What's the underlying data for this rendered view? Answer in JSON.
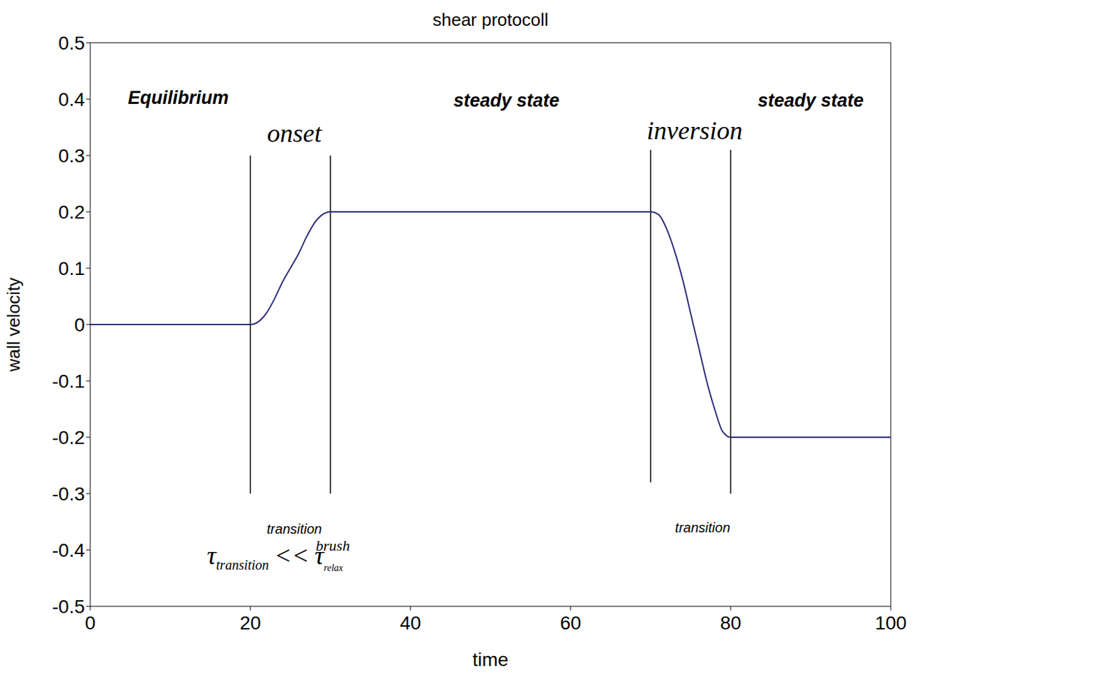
{
  "chart_data": {
    "type": "line",
    "title": "shear protocoll",
    "x_label": "time",
    "y_label": "wall velocity",
    "x": [
      0,
      20,
      21,
      22,
      23,
      24,
      25,
      26,
      27,
      28,
      29,
      30,
      70,
      71,
      72,
      73,
      74,
      75,
      76,
      77,
      78,
      79,
      80,
      100
    ],
    "values": [
      0,
      0,
      0.005,
      0.02,
      0.045,
      0.075,
      0.1,
      0.125,
      0.155,
      0.18,
      0.195,
      0.2,
      0.2,
      0.195,
      0.17,
      0.13,
      0.08,
      0.02,
      -0.04,
      -0.1,
      -0.15,
      -0.19,
      -0.2,
      -0.2
    ],
    "color": "#2b2b7a",
    "xlim": [
      0,
      100
    ],
    "xticks": [
      0,
      20,
      40,
      60,
      80,
      100
    ],
    "ylim": [
      -0.5,
      0.5
    ],
    "yticks": [
      -0.5,
      -0.4,
      -0.3,
      -0.2,
      -0.1,
      0,
      0.1,
      0.2,
      0.3,
      0.4,
      0.5
    ],
    "grid": false,
    "vertical_lines": [
      {
        "x": 20,
        "ymin": -0.3,
        "ymax": 0.3
      },
      {
        "x": 30,
        "ymin": -0.3,
        "ymax": 0.3
      },
      {
        "x": 70,
        "ymin": -0.28,
        "ymax": 0.31
      },
      {
        "x": 80,
        "ymin": -0.3,
        "ymax": 0.31
      }
    ],
    "annotations": [
      {
        "text": "Equilibrium",
        "x": 11,
        "y": 0.4,
        "style": "label"
      },
      {
        "text": "steady state",
        "x": 52,
        "y": 0.395,
        "style": "label"
      },
      {
        "text": "steady state",
        "x": 90,
        "y": 0.395,
        "style": "label"
      },
      {
        "text": "onset",
        "x": 25.5,
        "y": 0.335,
        "style": "big"
      },
      {
        "text": "inversion",
        "x": 75.5,
        "y": 0.34,
        "style": "big"
      },
      {
        "text": "transition",
        "x": 25.5,
        "y": -0.365,
        "style": "small"
      },
      {
        "text": "transition",
        "x": 76.5,
        "y": -0.362,
        "style": "small"
      }
    ],
    "formula": {
      "x": 23.5,
      "y": -0.425,
      "left": "τ",
      "left_sub": "transition",
      "op": "<<",
      "right": "τ",
      "right_sub": "relax",
      "right_sup": "brush"
    }
  }
}
